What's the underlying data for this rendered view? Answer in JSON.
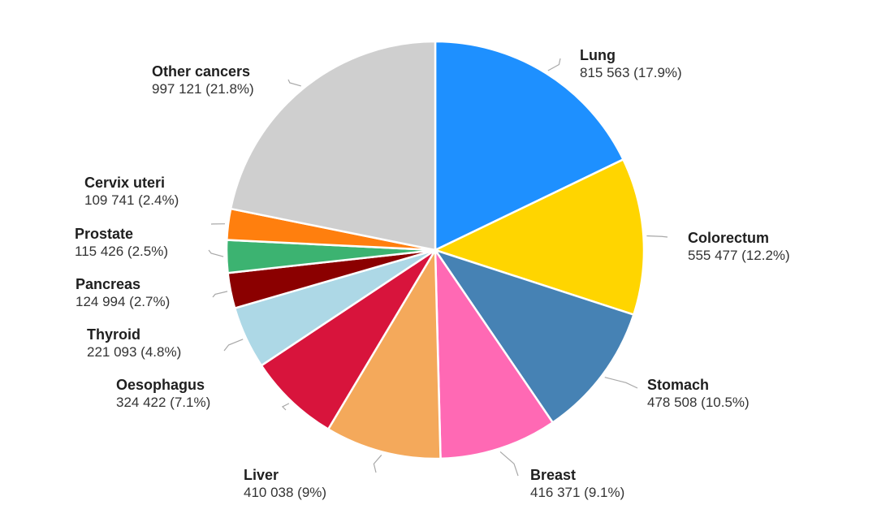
{
  "chart_data": {
    "type": "pie",
    "title": "",
    "slices": [
      {
        "name": "Lung",
        "value": 815563,
        "label": "815 563 (17.9%)",
        "percent": 17.9,
        "color": "#1E90FF"
      },
      {
        "name": "Colorectum",
        "value": 555477,
        "label": "555 477 (12.2%)",
        "percent": 12.2,
        "color": "#FFD500"
      },
      {
        "name": "Stomach",
        "value": 478508,
        "label": "478 508 (10.5%)",
        "percent": 10.5,
        "color": "#4682B4"
      },
      {
        "name": "Breast",
        "value": 416371,
        "label": "416 371 (9.1%)",
        "percent": 9.1,
        "color": "#FF69B4"
      },
      {
        "name": "Liver",
        "value": 410038,
        "label": "410 038 (9%)",
        "percent": 9.0,
        "color": "#F4A95B"
      },
      {
        "name": "Oesophagus",
        "value": 324422,
        "label": "324 422 (7.1%)",
        "percent": 7.1,
        "color": "#D8143C"
      },
      {
        "name": "Thyroid",
        "value": 221093,
        "label": "221 093 (4.8%)",
        "percent": 4.8,
        "color": "#ADD8E6"
      },
      {
        "name": "Pancreas",
        "value": 124994,
        "label": "124 994 (2.7%)",
        "percent": 2.7,
        "color": "#8B0000"
      },
      {
        "name": "Prostate",
        "value": 115426,
        "label": "115 426 (2.5%)",
        "percent": 2.5,
        "color": "#3CB371"
      },
      {
        "name": "Cervix uteri",
        "value": 109741,
        "label": "109 741 (2.4%)",
        "percent": 2.4,
        "color": "#FF7F0E"
      },
      {
        "name": "Other cancers",
        "value": 997121,
        "label": "997 121 (21.8%)",
        "percent": 21.8,
        "color": "#CFCFCF"
      }
    ]
  }
}
